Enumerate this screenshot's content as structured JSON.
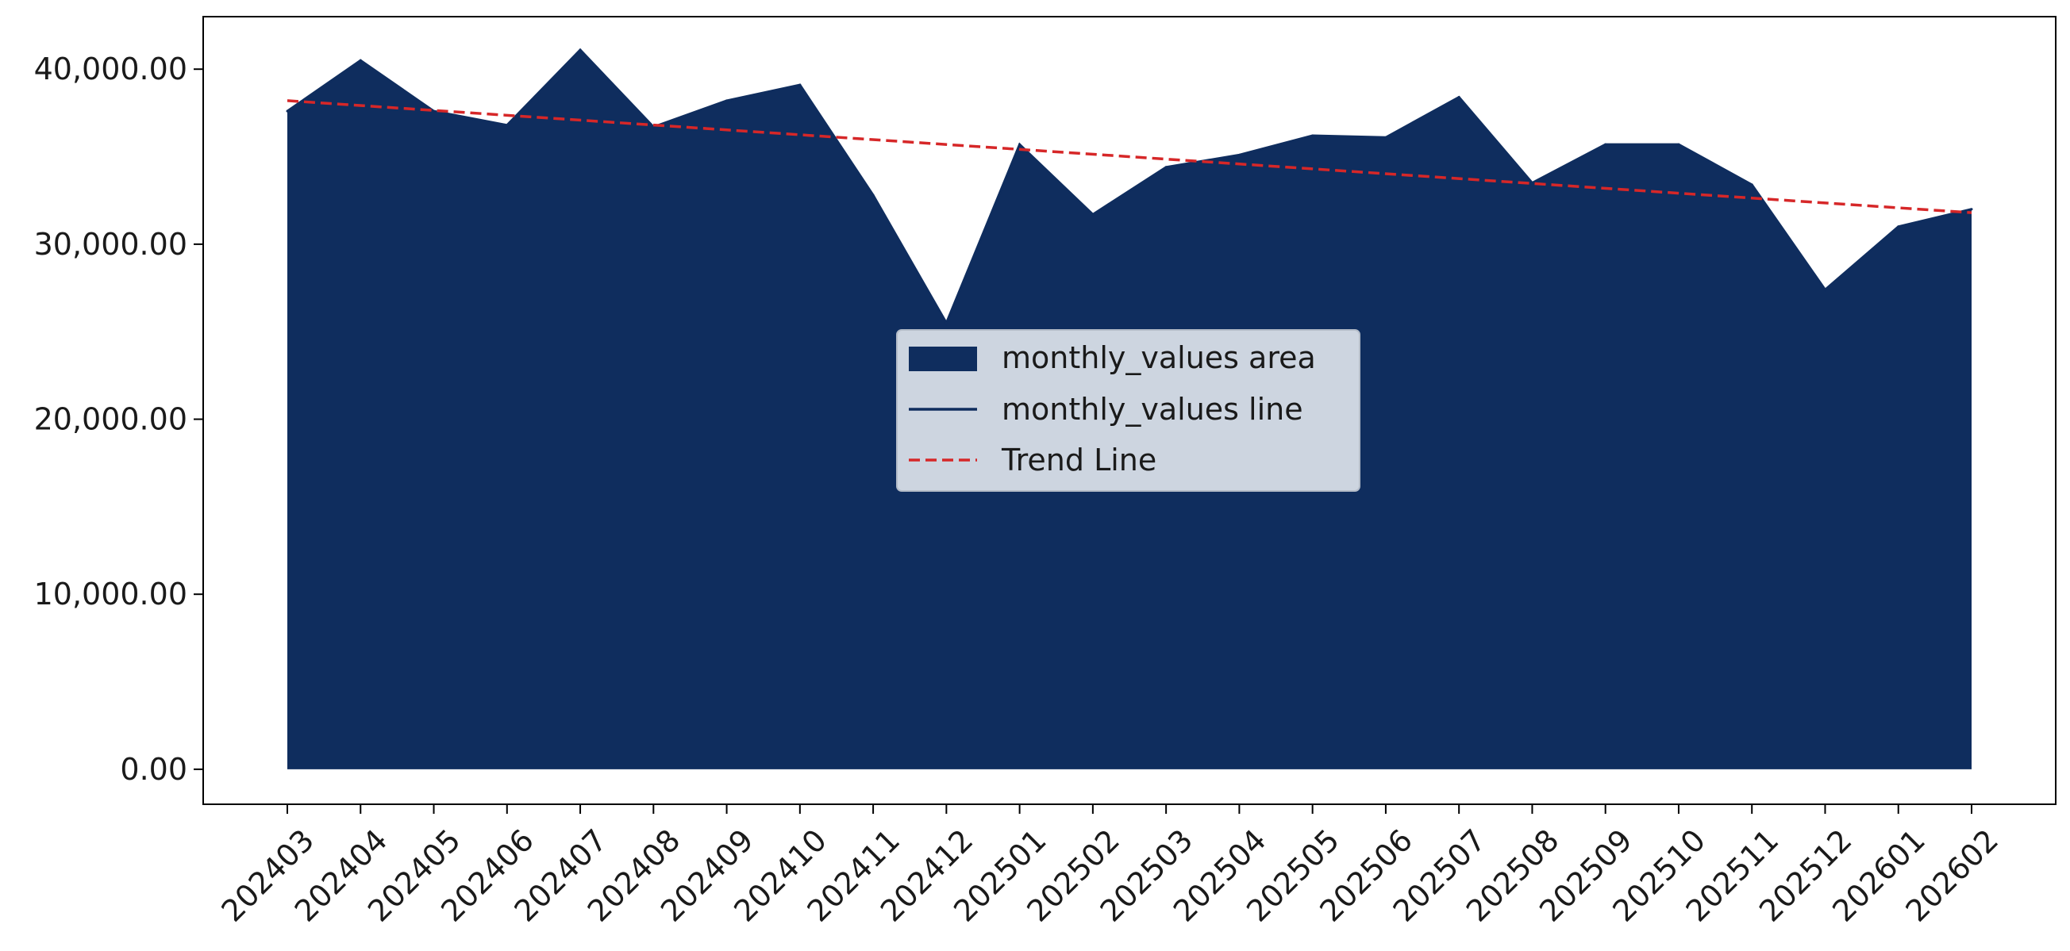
{
  "chart_data": {
    "type": "area",
    "title": "",
    "xlabel": "",
    "ylabel": "",
    "categories": [
      "202403",
      "202404",
      "202405",
      "202406",
      "202407",
      "202408",
      "202409",
      "202410",
      "202411",
      "202412",
      "202501",
      "202502",
      "202503",
      "202504",
      "202505",
      "202506",
      "202507",
      "202508",
      "202509",
      "202510",
      "202511",
      "202512",
      "202601",
      "202602"
    ],
    "series": [
      {
        "name": "monthly_values area",
        "values": [
          37600,
          40500,
          37600,
          36800,
          41100,
          36700,
          38200,
          39100,
          32800,
          25500,
          35700,
          31700,
          34400,
          35100,
          36200,
          36100,
          38400,
          33500,
          35700,
          35700,
          33400,
          27400,
          31000,
          32000
        ]
      }
    ],
    "trend": {
      "name": "Trend Line",
      "start": 38200,
      "end": 31800
    },
    "ylim": [
      -2000,
      43000
    ],
    "yticks": [
      0,
      10000,
      20000,
      30000,
      40000
    ],
    "ytick_labels": [
      "0.00",
      "10,000.00",
      "20,000.00",
      "30,000.00",
      "40,000.00"
    ],
    "legend": {
      "placement": "center",
      "entries": [
        "monthly_values area",
        "monthly_values line",
        "Trend Line"
      ]
    },
    "grid": false,
    "colors": {
      "area": "#0f2d5e",
      "line": "#0f2d5e",
      "trend": "#d62728",
      "legend_bg": "#cdd5e0"
    }
  }
}
